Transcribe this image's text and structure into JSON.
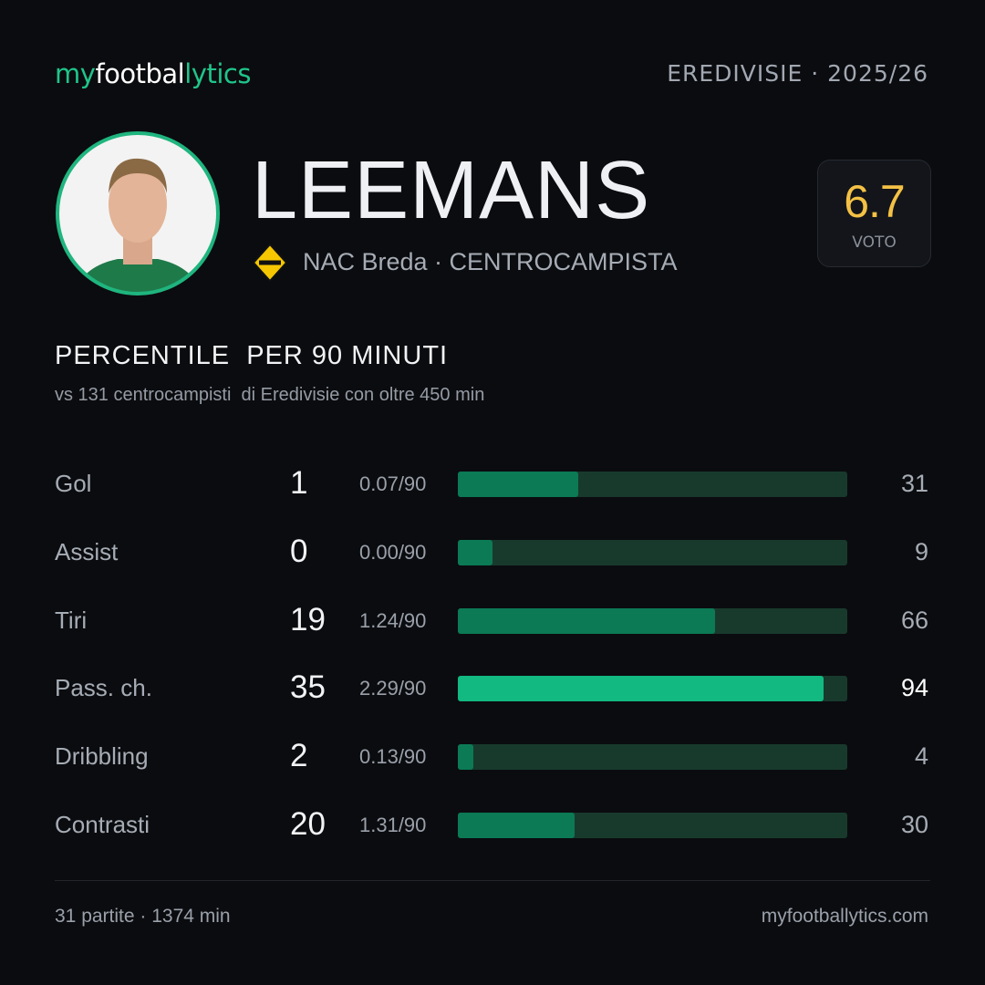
{
  "header": {
    "brand": [
      "my",
      "footbal",
      "lytics"
    ],
    "league": "EREDIVISIE · 2025/26"
  },
  "player": {
    "name": "LEEMANS",
    "team": "NAC Breda · CENTROCAMPISTA",
    "rating": 6.7,
    "rating_label": "VOTO"
  },
  "section": {
    "title": "PERCENTILE  PER 90 MINUTI",
    "subtitle": "vs 131 centrocampisti  di Eredivisie con oltre 450 min"
  },
  "stats": {
    "xlim": [
      0,
      100
    ],
    "track_color": "#183a2d",
    "rows": [
      {
        "label": "Gol",
        "total": 1,
        "per90": "0.07/90",
        "percentile": 31,
        "color": "#0b7a55"
      },
      {
        "label": "Assist",
        "total": 0,
        "per90": "0.00/90",
        "percentile": 9,
        "color": "#0b7a55"
      },
      {
        "label": "Tiri",
        "total": 19,
        "per90": "1.24/90",
        "percentile": 66,
        "color": "#0b7a55"
      },
      {
        "label": "Pass. ch.",
        "total": 35,
        "per90": "2.29/90",
        "percentile": 94,
        "color": "#12b981"
      },
      {
        "label": "Dribbling",
        "total": 2,
        "per90": "0.13/90",
        "percentile": 4,
        "color": "#0b7a55"
      },
      {
        "label": "Contrasti",
        "total": 20,
        "per90": "1.31/90",
        "percentile": 30,
        "color": "#0b7a55"
      }
    ]
  },
  "footer": {
    "left": "31 partite · 1374 min",
    "right": "myfootballytics.com"
  }
}
